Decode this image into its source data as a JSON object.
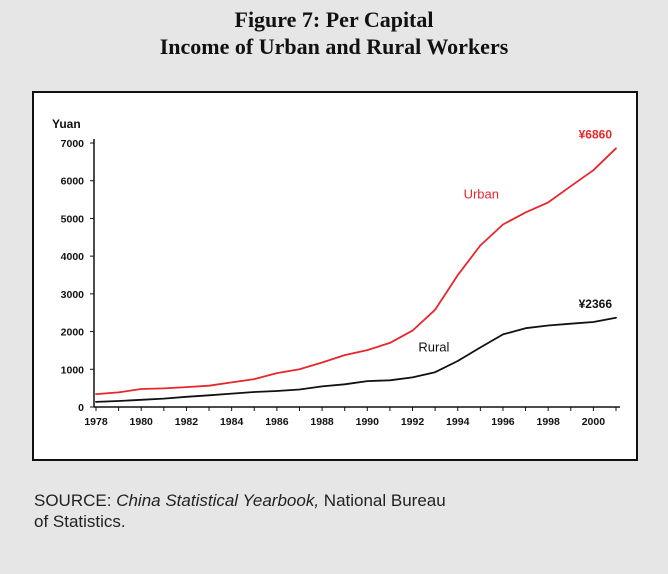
{
  "figure": {
    "title_line1": "Figure 7: Per Capital",
    "title_line2": "Income of Urban and Rural Workers"
  },
  "source": {
    "prefix": "SOURCE: ",
    "publication": "China Statistical Yearbook,",
    "publisher_part1": " National Bureau",
    "publisher_part2": "of Statistics."
  },
  "chart_data": {
    "type": "line",
    "title": "",
    "xlabel": "",
    "ylabel": "Yuan",
    "xlim": [
      1978,
      2001
    ],
    "ylim": [
      0,
      7000
    ],
    "grid": false,
    "x_ticks": [
      "1978",
      "1980",
      "1982",
      "1984",
      "1986",
      "1988",
      "1990",
      "1992",
      "1994",
      "1996",
      "1998",
      "2000"
    ],
    "y_ticks": [
      "0",
      "1000",
      "2000",
      "3000",
      "4000",
      "5000",
      "6000",
      "7000"
    ],
    "x": [
      1978,
      1979,
      1980,
      1981,
      1982,
      1983,
      1984,
      1985,
      1986,
      1987,
      1988,
      1989,
      1990,
      1991,
      1992,
      1993,
      1994,
      1995,
      1996,
      1997,
      1998,
      1999,
      2000,
      2001
    ],
    "series": [
      {
        "name": "Urban",
        "color": "#e8262c",
        "values": [
          343,
          387,
          478,
          492,
          527,
          564,
          651,
          739,
          900,
          1002,
          1181,
          1376,
          1510,
          1700,
          2027,
          2577,
          3496,
          4283,
          4839,
          5160,
          5425,
          5854,
          6280,
          6860
        ],
        "end_label": "¥6860"
      },
      {
        "name": "Rural",
        "color": "#111111",
        "values": [
          134,
          160,
          191,
          223,
          270,
          310,
          355,
          398,
          424,
          463,
          545,
          602,
          686,
          709,
          784,
          922,
          1221,
          1578,
          1926,
          2090,
          2162,
          2210,
          2253,
          2366
        ],
        "end_label": "¥2366"
      }
    ]
  }
}
